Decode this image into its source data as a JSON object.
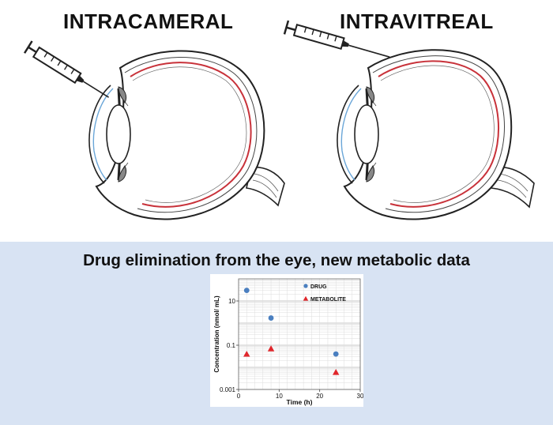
{
  "panels": {
    "left_title": "INTRACAMERAL",
    "right_title": "INTRAVITREAL"
  },
  "band": {
    "title": "Drug elimination from the eye, new metabolic data"
  },
  "colors": {
    "band_background": "#d8e3f3",
    "drug": "#4a7fc0",
    "metabolite": "#e0262b",
    "retina": "#c8323a",
    "cornea": "#6aa6d8"
  },
  "chart_data": {
    "type": "scatter",
    "xlabel": "Time (h)",
    "ylabel": "Concentration (nmol/ mL)",
    "xlim": [
      0,
      30
    ],
    "ylim": [
      0.001,
      100
    ],
    "yscale": "log",
    "x_ticks": [
      "0",
      "10",
      "20",
      "30"
    ],
    "y_ticks": [
      "10",
      "0.1",
      "0.001"
    ],
    "grid": true,
    "legend_position": "top-right",
    "series": [
      {
        "name": "DRUG",
        "marker": "circle",
        "color": "#4a7fc0",
        "x": [
          2,
          8,
          24
        ],
        "y": [
          30,
          1.7,
          0.04
        ]
      },
      {
        "name": "METABOLITE",
        "marker": "triangle",
        "color": "#e0262b",
        "x": [
          2,
          8,
          24
        ],
        "y": [
          0.04,
          0.07,
          0.006
        ]
      }
    ]
  }
}
